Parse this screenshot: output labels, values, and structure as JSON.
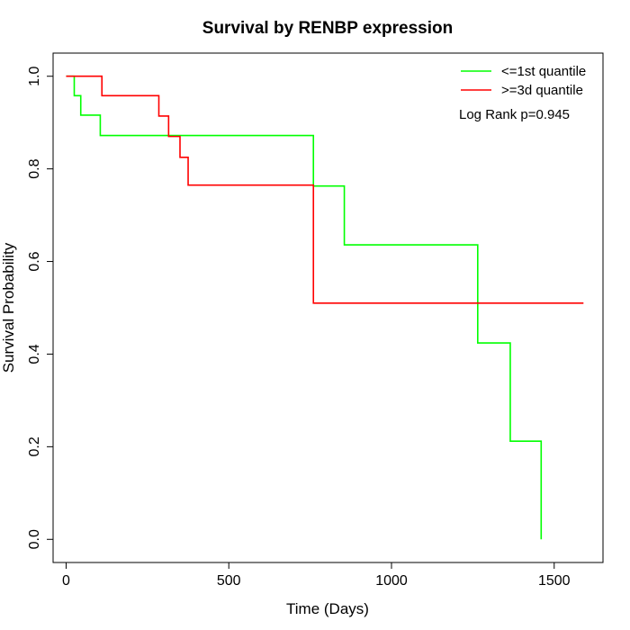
{
  "chart_data": {
    "type": "line",
    "title": "Survival by RENBP expression",
    "xlabel": "Time (Days)",
    "ylabel": "Survival Probability",
    "xlim": [
      -40,
      1650
    ],
    "ylim": [
      -0.05,
      1.05
    ],
    "x_ticks": [
      0,
      500,
      1000,
      1500
    ],
    "x_tick_labels": [
      "0",
      "500",
      "1000",
      "1500"
    ],
    "y_ticks": [
      0.0,
      0.2,
      0.4,
      0.6,
      0.8,
      1.0
    ],
    "y_tick_labels": [
      "0.0",
      "0.2",
      "0.4",
      "0.6",
      "0.8",
      "1.0"
    ],
    "grid": false,
    "legend_position": "top-right",
    "annotation": "Log Rank p=0.945",
    "step": "post",
    "series": [
      {
        "name": "<=1st quantile",
        "color": "#00ff00",
        "x": [
          0,
          25,
          45,
          105,
          760,
          855,
          1265,
          1365,
          1460
        ],
        "y": [
          1.0,
          0.958,
          0.916,
          0.872,
          0.763,
          0.636,
          0.424,
          0.212,
          0.0
        ]
      },
      {
        "name": ">=3d quantile",
        "color": "#ff0000",
        "x": [
          0,
          110,
          285,
          315,
          350,
          375,
          760,
          1590
        ],
        "y": [
          1.0,
          0.958,
          0.914,
          0.87,
          0.825,
          0.765,
          0.51,
          0.51
        ]
      }
    ]
  }
}
